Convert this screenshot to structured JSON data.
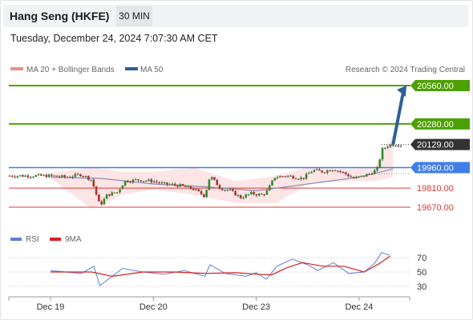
{
  "header": {
    "title": "Hang Seng (HKFE)",
    "timeframe": "30 MIN",
    "datetime": "Tuesday, December 24, 2024 7:07:30 AM CET"
  },
  "legend": {
    "ma20_label": "MA 20 + Bollinger Bands",
    "ma50_label": "MA 50",
    "credit": "Research © 2024 Trading Central",
    "rsi_label": "RSI",
    "rsi_ma_label": "9MA"
  },
  "colors": {
    "target_green": "#4ca000",
    "pivot_blue": "#3f7ee8",
    "support_red": "#e03535",
    "current_dark": "#333333",
    "arrow_blue": "#2d5f9a",
    "candle_up": "#2e8b2e",
    "candle_down": "#b03030",
    "band_fill": "#fde0e0",
    "ma50": "#8a8fb4",
    "rsi_line": "#5b7fd9",
    "rsi_ma_line": "#d62020"
  },
  "levels": [
    {
      "value": "20560.00",
      "kind": "target"
    },
    {
      "value": "20280.00",
      "kind": "target"
    },
    {
      "value": "20129.00",
      "kind": "current"
    },
    {
      "value": "19960.00",
      "kind": "pivot"
    },
    {
      "value": "19810.00",
      "kind": "support"
    },
    {
      "value": "19670.00",
      "kind": "support"
    }
  ],
  "chart_data": [
    {
      "type": "candlestick",
      "title": "Hang Seng (HKFE)",
      "timeframe": "30 MIN",
      "ylim": [
        19610,
        20600
      ],
      "x_ticks": [
        "Dec 19",
        "Dec 20",
        "Dec 23",
        "Dec 24"
      ],
      "y_levels": [
        20560,
        20280,
        20129,
        19960,
        19810,
        19670
      ],
      "current_price": 20129,
      "projection": {
        "from": 20129,
        "to": 20560
      },
      "close_path": [
        {
          "x": 0.0,
          "y": 19900
        },
        {
          "x": 0.15,
          "y": 19890
        },
        {
          "x": 0.3,
          "y": 19910
        },
        {
          "x": 0.4,
          "y": 19870
        },
        {
          "x": 0.48,
          "y": 19680
        },
        {
          "x": 0.55,
          "y": 19760
        },
        {
          "x": 0.65,
          "y": 19780
        },
        {
          "x": 0.72,
          "y": 19860
        },
        {
          "x": 0.85,
          "y": 19870
        },
        {
          "x": 1.0,
          "y": 19860
        },
        {
          "x": 1.1,
          "y": 19840
        },
        {
          "x": 1.25,
          "y": 19830
        },
        {
          "x": 1.4,
          "y": 19800
        },
        {
          "x": 1.5,
          "y": 19750
        },
        {
          "x": 1.55,
          "y": 19900
        },
        {
          "x": 1.65,
          "y": 19810
        },
        {
          "x": 1.75,
          "y": 19790
        },
        {
          "x": 1.85,
          "y": 19740
        },
        {
          "x": 1.95,
          "y": 19770
        },
        {
          "x": 2.05,
          "y": 19760
        },
        {
          "x": 2.1,
          "y": 19780
        },
        {
          "x": 2.18,
          "y": 19890
        },
        {
          "x": 2.3,
          "y": 19900
        },
        {
          "x": 2.45,
          "y": 19880
        },
        {
          "x": 2.55,
          "y": 19940
        },
        {
          "x": 2.65,
          "y": 19930
        },
        {
          "x": 2.75,
          "y": 19950
        },
        {
          "x": 2.85,
          "y": 19920
        },
        {
          "x": 2.95,
          "y": 19880
        },
        {
          "x": 3.05,
          "y": 19900
        },
        {
          "x": 3.12,
          "y": 19920
        },
        {
          "x": 3.18,
          "y": 19950
        },
        {
          "x": 3.22,
          "y": 20090
        },
        {
          "x": 3.28,
          "y": 20120
        },
        {
          "x": 3.33,
          "y": 20129
        }
      ],
      "ma20": {
        "name": "MA 20 + Bollinger Bands"
      },
      "ma50": {
        "name": "MA 50",
        "path": [
          {
            "x": 0.0,
            "y": 19890
          },
          {
            "x": 0.5,
            "y": 19880
          },
          {
            "x": 1.0,
            "y": 19840
          },
          {
            "x": 1.5,
            "y": 19820
          },
          {
            "x": 2.0,
            "y": 19790
          },
          {
            "x": 2.5,
            "y": 19840
          },
          {
            "x": 3.0,
            "y": 19890
          },
          {
            "x": 3.33,
            "y": 19950
          }
        ]
      },
      "bands": {
        "upper": [
          {
            "x": 0.0,
            "y": 19920
          },
          {
            "x": 0.4,
            "y": 19960
          },
          {
            "x": 0.7,
            "y": 19930
          },
          {
            "x": 1.0,
            "y": 19930
          },
          {
            "x": 1.4,
            "y": 19960
          },
          {
            "x": 1.8,
            "y": 19860
          },
          {
            "x": 2.2,
            "y": 19900
          },
          {
            "x": 2.5,
            "y": 19960
          },
          {
            "x": 2.9,
            "y": 19950
          },
          {
            "x": 3.15,
            "y": 19960
          },
          {
            "x": 3.33,
            "y": 20200
          }
        ],
        "lower": [
          {
            "x": 0.0,
            "y": 19880
          },
          {
            "x": 0.4,
            "y": 19660
          },
          {
            "x": 0.7,
            "y": 19760
          },
          {
            "x": 1.0,
            "y": 19800
          },
          {
            "x": 1.4,
            "y": 19760
          },
          {
            "x": 1.8,
            "y": 19700
          },
          {
            "x": 2.2,
            "y": 19700
          },
          {
            "x": 2.5,
            "y": 19840
          },
          {
            "x": 2.9,
            "y": 19860
          },
          {
            "x": 3.15,
            "y": 19860
          },
          {
            "x": 3.33,
            "y": 19890
          }
        ]
      }
    },
    {
      "type": "line",
      "title": "RSI",
      "ylim": [
        20,
        80
      ],
      "y_ticks": [
        70,
        50,
        30
      ],
      "series": [
        {
          "name": "RSI",
          "values": [
            {
              "x": 0.0,
              "y": 52
            },
            {
              "x": 0.3,
              "y": 48
            },
            {
              "x": 0.42,
              "y": 58
            },
            {
              "x": 0.48,
              "y": 31
            },
            {
              "x": 0.58,
              "y": 42
            },
            {
              "x": 0.7,
              "y": 55
            },
            {
              "x": 0.9,
              "y": 50
            },
            {
              "x": 1.1,
              "y": 47
            },
            {
              "x": 1.3,
              "y": 52
            },
            {
              "x": 1.5,
              "y": 44
            },
            {
              "x": 1.55,
              "y": 60
            },
            {
              "x": 1.7,
              "y": 48
            },
            {
              "x": 1.9,
              "y": 44
            },
            {
              "x": 2.0,
              "y": 49
            },
            {
              "x": 2.1,
              "y": 40
            },
            {
              "x": 2.2,
              "y": 58
            },
            {
              "x": 2.35,
              "y": 68
            },
            {
              "x": 2.5,
              "y": 60
            },
            {
              "x": 2.6,
              "y": 52
            },
            {
              "x": 2.75,
              "y": 63
            },
            {
              "x": 2.9,
              "y": 48
            },
            {
              "x": 3.05,
              "y": 50
            },
            {
              "x": 3.15,
              "y": 62
            },
            {
              "x": 3.22,
              "y": 77
            },
            {
              "x": 3.3,
              "y": 73
            }
          ]
        },
        {
          "name": "9MA",
          "values": [
            {
              "x": 0.0,
              "y": 50
            },
            {
              "x": 0.4,
              "y": 50
            },
            {
              "x": 0.6,
              "y": 44
            },
            {
              "x": 0.9,
              "y": 50
            },
            {
              "x": 1.2,
              "y": 50
            },
            {
              "x": 1.5,
              "y": 48
            },
            {
              "x": 1.8,
              "y": 49
            },
            {
              "x": 2.0,
              "y": 47
            },
            {
              "x": 2.15,
              "y": 46
            },
            {
              "x": 2.3,
              "y": 56
            },
            {
              "x": 2.45,
              "y": 63
            },
            {
              "x": 2.65,
              "y": 58
            },
            {
              "x": 2.85,
              "y": 58
            },
            {
              "x": 3.05,
              "y": 50
            },
            {
              "x": 3.2,
              "y": 62
            },
            {
              "x": 3.3,
              "y": 72
            }
          ]
        }
      ]
    }
  ]
}
